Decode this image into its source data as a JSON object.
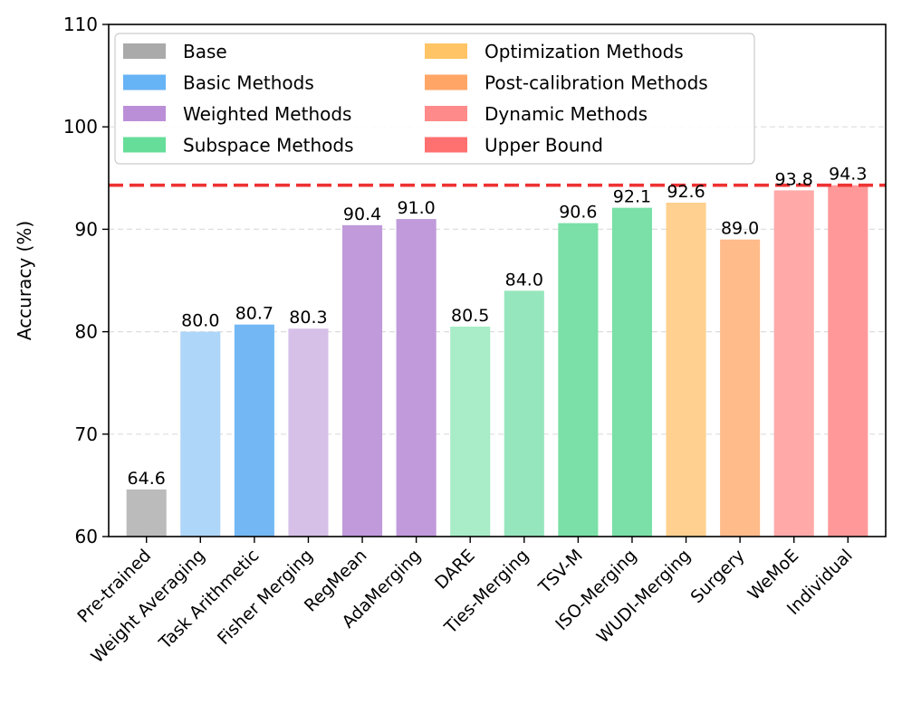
{
  "chart_data": {
    "type": "bar",
    "ylabel": "Accuracy (%)",
    "xlabel": "",
    "ylim": [
      60,
      110
    ],
    "yticks": [
      60,
      70,
      80,
      90,
      100,
      110
    ],
    "grid": "y-dashed",
    "legend_position": "top-left",
    "reference_line": {
      "value": 94.3,
      "style": "dashed",
      "color": "#ee3333"
    },
    "categories": [
      "Pre-trained",
      "Weight Averaging",
      "Task Arithmetic",
      "Fisher Merging",
      "RegMean",
      "AdaMerging",
      "DARE",
      "Ties-Merging",
      "TSV-M",
      "ISO-Merging",
      "WUDI-Merging",
      "Surgery",
      "WeMoE",
      "Individual"
    ],
    "values": [
      64.6,
      80.0,
      80.7,
      80.3,
      90.4,
      91.0,
      80.5,
      84.0,
      90.6,
      92.1,
      92.6,
      89.0,
      93.8,
      94.3
    ],
    "value_labels": [
      "64.6",
      "80.0",
      "80.7",
      "80.3",
      "90.4",
      "91.0",
      "80.5",
      "84.0",
      "90.6",
      "92.1",
      "92.6",
      "89.0",
      "93.8",
      "94.3"
    ],
    "bar_colors": [
      "#bbbbbb",
      "#aed6f8",
      "#73b8f5",
      "#d6c0e8",
      "#c09adb",
      "#c09adb",
      "#a8ecc8",
      "#96e6bd",
      "#7ae0a7",
      "#7ae0a7",
      "#ffd08f",
      "#ffbb8a",
      "#ffa9a9",
      "#ff9999"
    ],
    "groups": [
      "Base",
      "Basic Methods",
      "Basic Methods",
      "Weighted Methods",
      "Weighted Methods",
      "Weighted Methods",
      "Subspace Methods",
      "Subspace Methods",
      "Subspace Methods",
      "Subspace Methods",
      "Optimization Methods",
      "Post-calibration Methods",
      "Dynamic Methods",
      "Upper Bound"
    ],
    "legend": [
      {
        "label": "Base",
        "color": "#aaaaaa"
      },
      {
        "label": "Basic Methods",
        "color": "#66b3f5"
      },
      {
        "label": "Weighted Methods",
        "color": "#bb8fd8"
      },
      {
        "label": "Subspace Methods",
        "color": "#66dd99"
      },
      {
        "label": "Optimization Methods",
        "color": "#ffc466"
      },
      {
        "label": "Post-calibration Methods",
        "color": "#ffa666"
      },
      {
        "label": "Dynamic Methods",
        "color": "#ff8a8a"
      },
      {
        "label": "Upper Bound",
        "color": "#ff7070"
      }
    ]
  }
}
